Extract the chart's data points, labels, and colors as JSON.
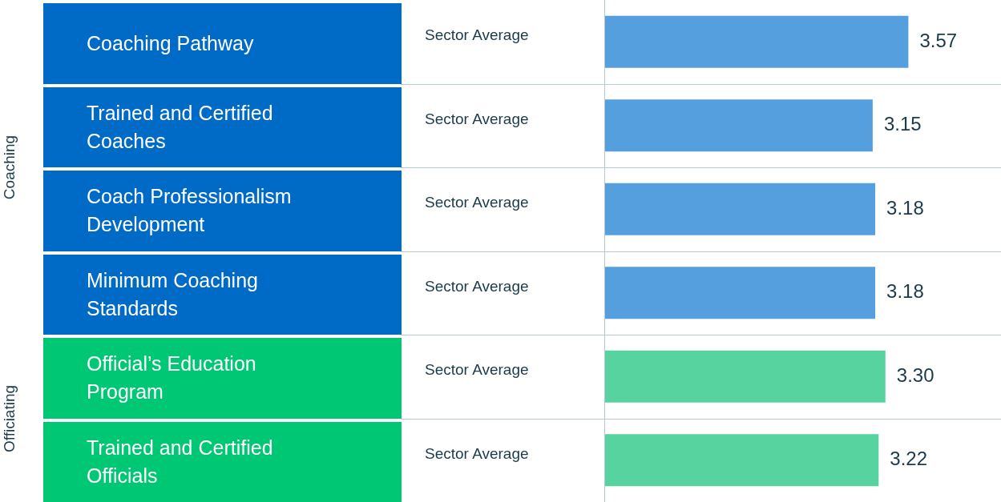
{
  "chart_data": {
    "type": "bar",
    "orientation": "horizontal",
    "categories": [
      "Coaching Pathway",
      "Trained and Certified Coaches",
      "Coach Professionalism Development",
      "Minimum Coaching Standards",
      "Official’s Education Program",
      "Trained and Certified Officials"
    ],
    "values": [
      3.57,
      3.15,
      3.18,
      3.18,
      3.3,
      3.22
    ],
    "value_labels": [
      "3.57",
      "3.15",
      "3.18",
      "3.18",
      "3.30",
      "3.22"
    ],
    "colors": [
      "#569fdf",
      "#569fdf",
      "#569fdf",
      "#569fdf",
      "#57d3a0",
      "#57d3a0"
    ],
    "legend": false,
    "annotations": [
      "Coaching",
      "Officiating",
      "Sector Average",
      "Sector Average",
      "Sector Average",
      "Sector Average",
      "Sector Average",
      "Sector Average"
    ]
  }
}
